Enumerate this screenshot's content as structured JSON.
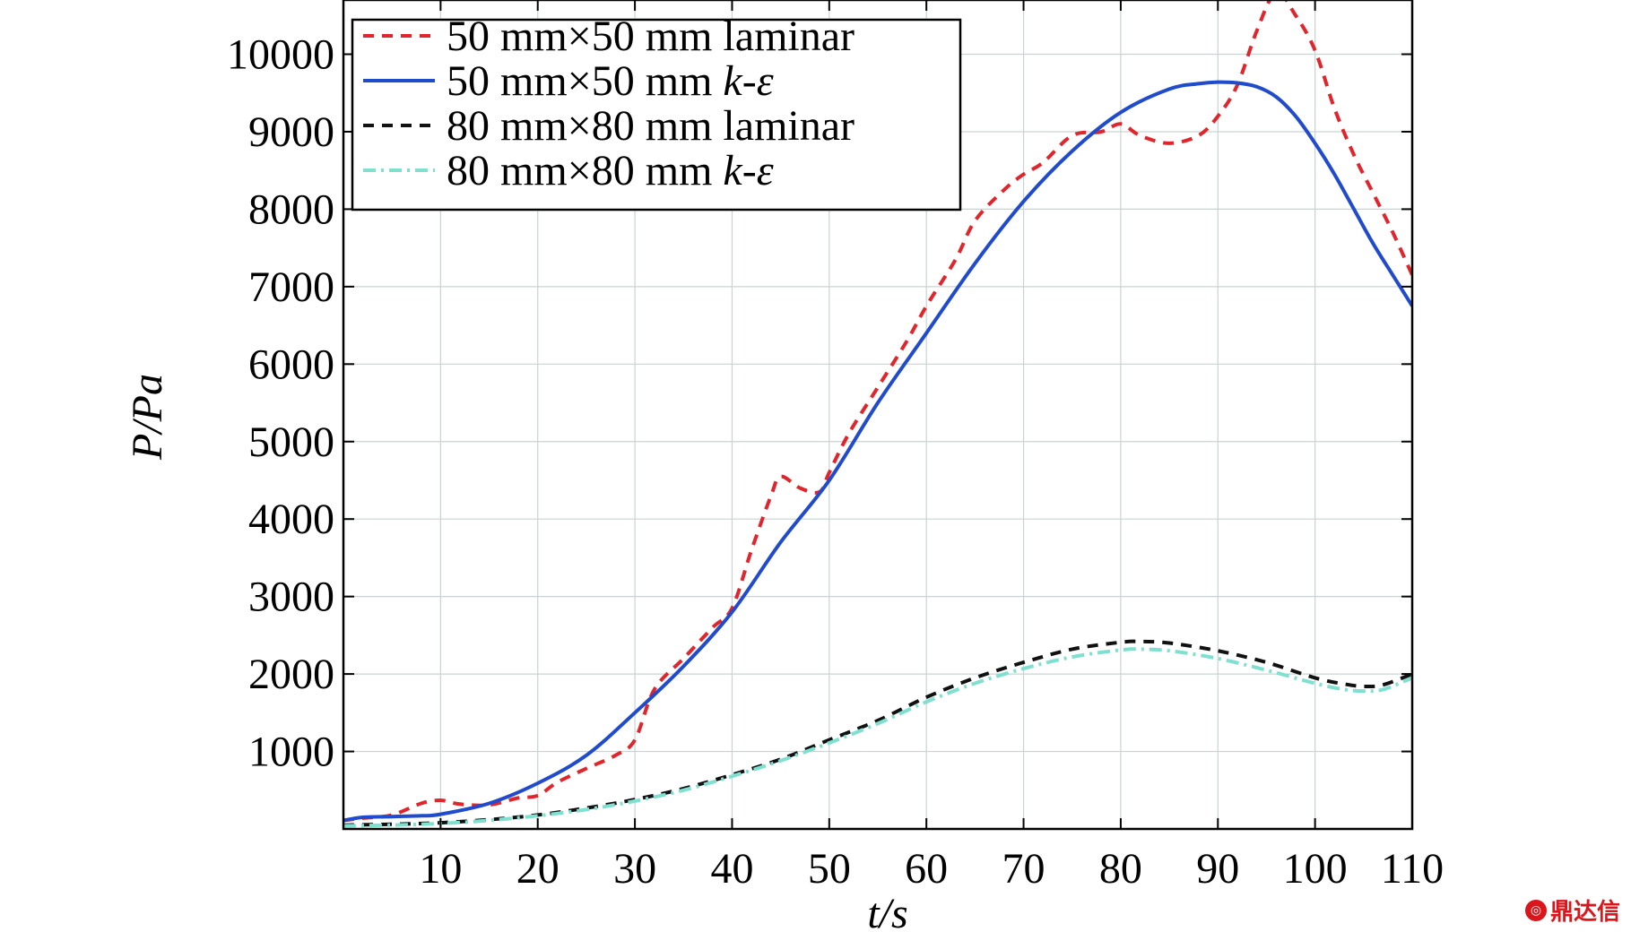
{
  "chart_data": {
    "type": "line",
    "xlabel": "t/s",
    "ylabel": "P/Pa",
    "xlim": [
      0,
      110
    ],
    "ylim": [
      0,
      10700
    ],
    "xticks": [
      10,
      20,
      30,
      40,
      50,
      60,
      70,
      80,
      90,
      100,
      110
    ],
    "yticks": [
      1000,
      2000,
      3000,
      4000,
      5000,
      6000,
      7000,
      8000,
      9000,
      10000
    ],
    "grid": true,
    "legend_position": "top-left",
    "series": [
      {
        "name": "50 mm×50 mm laminar",
        "color": "#e0262c",
        "dash": "dashed",
        "x": [
          0,
          2,
          5,
          8,
          10,
          12,
          15,
          18,
          20,
          22,
          25,
          28,
          30,
          32,
          35,
          38,
          40,
          42,
          44,
          45,
          47,
          49,
          50,
          52,
          55,
          58,
          60,
          63,
          65,
          68,
          70,
          72,
          75,
          78,
          80,
          82,
          85,
          88,
          90,
          92,
          94,
          96,
          98,
          100,
          102,
          104,
          106,
          108,
          110
        ],
        "y": [
          110,
          140,
          180,
          330,
          370,
          320,
          310,
          400,
          430,
          600,
          780,
          950,
          1150,
          1800,
          2200,
          2600,
          2850,
          3600,
          4300,
          4550,
          4400,
          4350,
          4600,
          5100,
          5700,
          6300,
          6750,
          7350,
          7850,
          8250,
          8450,
          8600,
          8950,
          9000,
          9100,
          8950,
          8850,
          8950,
          9200,
          9600,
          10300,
          10800,
          10500,
          10050,
          9300,
          8700,
          8200,
          7700,
          7150
        ]
      },
      {
        "name": "50 mm×50 mm k-ε",
        "color": "#1f4bcc",
        "dash": "solid",
        "x": [
          0,
          2,
          5,
          8,
          10,
          15,
          20,
          25,
          30,
          35,
          40,
          45,
          50,
          55,
          60,
          65,
          70,
          75,
          80,
          85,
          88,
          90,
          92,
          94,
          96,
          98,
          100,
          102,
          104,
          106,
          108,
          110
        ],
        "y": [
          110,
          150,
          160,
          170,
          190,
          330,
          590,
          950,
          1500,
          2100,
          2800,
          3700,
          4500,
          5500,
          6400,
          7300,
          8100,
          8750,
          9250,
          9550,
          9620,
          9640,
          9630,
          9580,
          9450,
          9200,
          8850,
          8450,
          8000,
          7550,
          7150,
          6750
        ]
      },
      {
        "name": "80 mm×80 mm laminar",
        "color": "#111111",
        "dash": "dashed",
        "x": [
          0,
          5,
          10,
          15,
          20,
          25,
          30,
          35,
          40,
          45,
          50,
          55,
          60,
          65,
          70,
          75,
          80,
          82,
          85,
          90,
          95,
          100,
          103,
          105,
          107,
          110
        ],
        "y": [
          50,
          60,
          80,
          120,
          180,
          270,
          380,
          520,
          700,
          900,
          1150,
          1400,
          1700,
          1950,
          2150,
          2320,
          2410,
          2420,
          2400,
          2300,
          2150,
          1950,
          1870,
          1840,
          1860,
          2000
        ]
      },
      {
        "name": "80 mm×80 mm k-ε",
        "color": "#7fe0d0",
        "dash": "dashdot",
        "x": [
          0,
          5,
          10,
          15,
          20,
          25,
          30,
          35,
          40,
          45,
          50,
          55,
          60,
          65,
          70,
          75,
          80,
          82,
          85,
          90,
          95,
          100,
          103,
          105,
          107,
          110
        ],
        "y": [
          40,
          50,
          70,
          110,
          170,
          250,
          360,
          500,
          680,
          880,
          1110,
          1360,
          1640,
          1880,
          2070,
          2220,
          2310,
          2320,
          2300,
          2200,
          2050,
          1880,
          1800,
          1780,
          1800,
          1950
        ]
      }
    ]
  },
  "legend": {
    "items": [
      {
        "prefix": "50 mm×50 mm ",
        "suffix": "laminar",
        "italic": false
      },
      {
        "prefix": "50 mm×50 mm ",
        "suffix": "k-ε",
        "italic": true
      },
      {
        "prefix": "80 mm×80 mm ",
        "suffix": "laminar",
        "italic": false
      },
      {
        "prefix": "80 mm×80 mm ",
        "suffix": "k-ε",
        "italic": true
      }
    ]
  },
  "watermark": {
    "text": "鼎达信",
    "icon": "logo-icon"
  }
}
